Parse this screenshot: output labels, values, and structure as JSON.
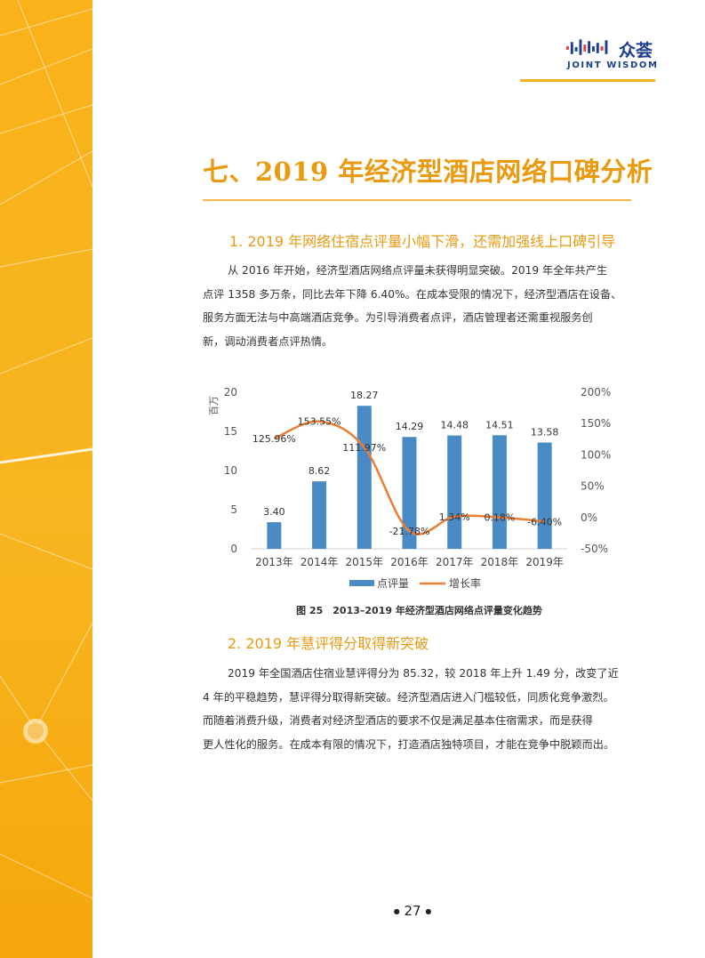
{
  "header": {
    "logo_cn": "众荟",
    "logo_en": "JOINT WISDOM"
  },
  "section": {
    "title": "七、2019 年经济型酒店网络口碑分析"
  },
  "sub1": {
    "heading": "1. 2019 年网络住宿点评量小幅下滑，还需加强线上口碑引导",
    "lines": [
      "从 2016 年开始，经济型酒店网络点评量未获得明显突破。2019 年全年共产生",
      "点评 1358 多万条，同比去年下降 6.40%。在成本受限的情况下，经济型酒店在设备、",
      "服务方面无法与中高端酒店竞争。为引导消费者点评，酒店管理者还需重视服务创",
      "新，调动消费者点评热情。"
    ]
  },
  "chart_data": {
    "type": "bar",
    "title": "",
    "categories": [
      "2013年",
      "2014年",
      "2015年",
      "2016年",
      "2017年",
      "2018年",
      "2019年"
    ],
    "series": [
      {
        "name": "点评量",
        "type": "bar",
        "axis": "left",
        "values": [
          3.4,
          8.62,
          18.27,
          14.29,
          14.48,
          14.51,
          13.58
        ],
        "labels": [
          "3.40",
          "8.62",
          "18.27",
          "14.29",
          "14.48",
          "14.51",
          "13.58"
        ],
        "color": "#4a8bc6"
      },
      {
        "name": "增长率",
        "type": "line",
        "axis": "right",
        "values": [
          125.96,
          153.55,
          111.97,
          -21.78,
          1.34,
          0.18,
          -6.4
        ],
        "labels": [
          "125.96%",
          "153.55%",
          "111.97%",
          "-21.78%",
          "1.34%",
          "0.18%",
          "-6.40%"
        ],
        "color": "#ed7d31"
      }
    ],
    "ylabel": "百万",
    "ylim": [
      0,
      20
    ],
    "yticks": [
      "0",
      "5",
      "10",
      "15",
      "20"
    ],
    "y2lim": [
      -50,
      200
    ],
    "y2ticks": [
      "-50%",
      "0%",
      "50%",
      "100%",
      "150%",
      "200%"
    ],
    "caption": "图 25　2013–2019 年经济型酒店网络点评量变化趋势"
  },
  "sub2": {
    "heading": "2. 2019 年慧评得分取得新突破",
    "lines": [
      "2019 年全国酒店住宿业慧评得分为 85.32，较 2018 年上升 1.49 分，改变了近",
      "4 年的平稳趋势，慧评得分取得新突破。经济型酒店进入门槛较低，同质化竞争激烈。",
      "而随着消费升级，消费者对经济型酒店的要求不仅是满足基本住宿需求，而是获得",
      "更人性化的服务。在成本有限的情况下，打造酒店独特项目，才能在竞争中脱颖而出。"
    ]
  },
  "footer": {
    "page_number": "27"
  },
  "colors": {
    "accent_orange": "#ea9a0f",
    "band_yellow": "#f9b21a",
    "logo_blue": "#1c3e8f",
    "bar_blue": "#4a8bc6",
    "line_orange": "#ed7d31"
  }
}
